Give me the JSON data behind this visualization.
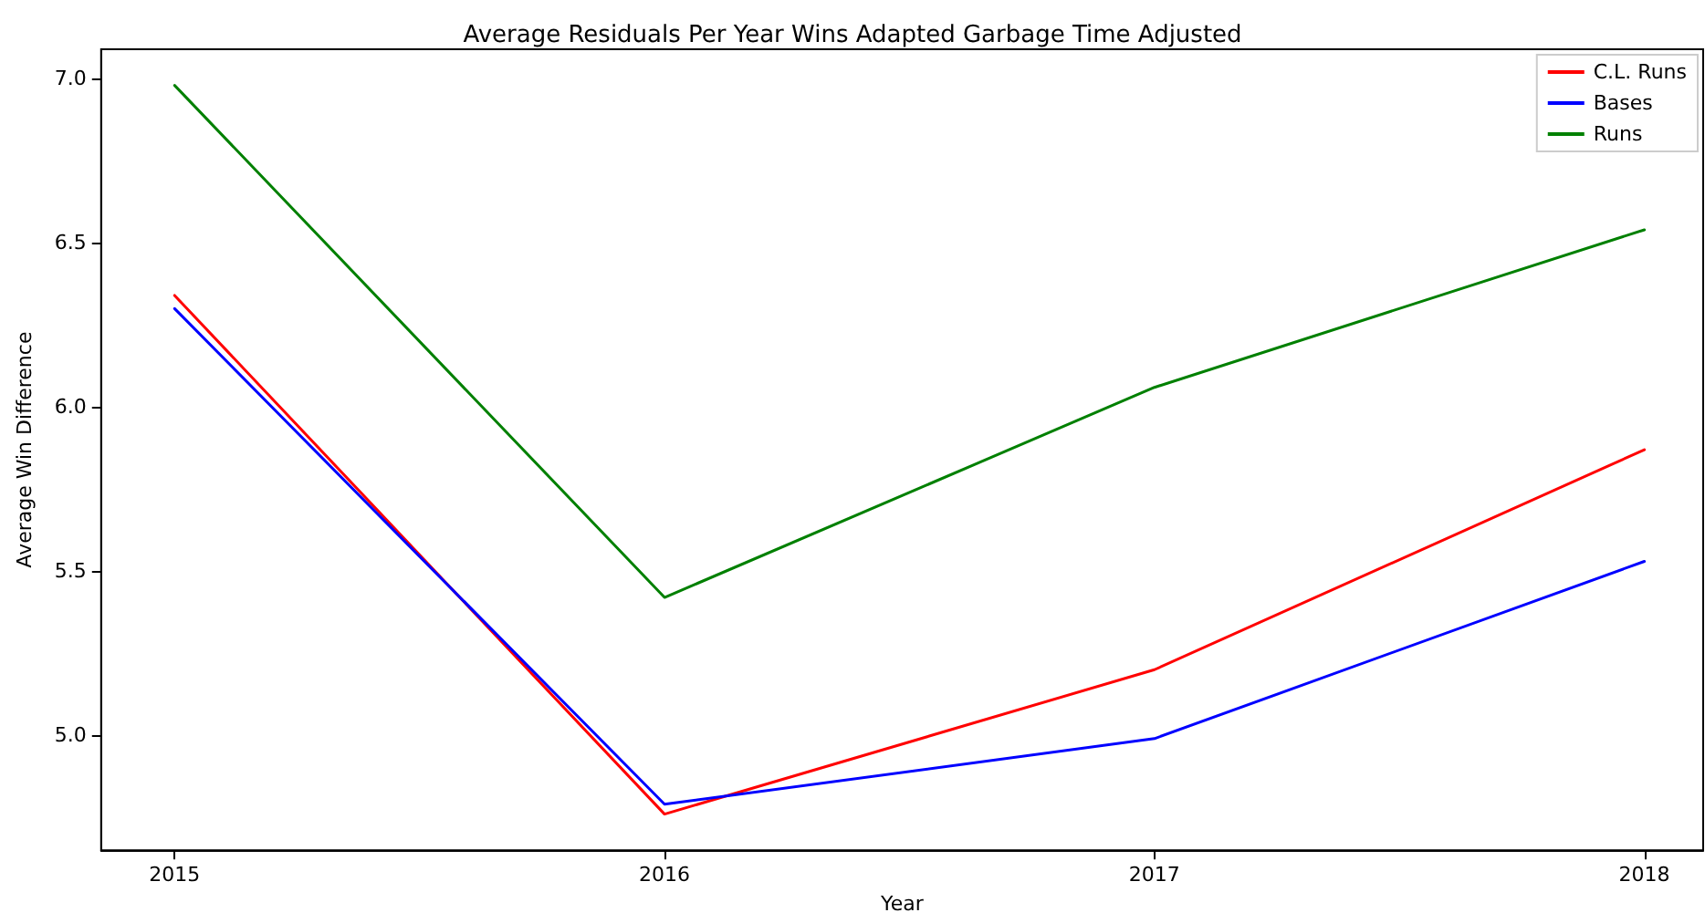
{
  "chart_data": {
    "type": "line",
    "title": "Average Residuals Per Year Wins Adapted Garbage Time Adjusted",
    "xlabel": "Year",
    "ylabel": "Average Win Difference",
    "x": [
      2015,
      2016,
      2017,
      2018
    ],
    "series": [
      {
        "name": "C.L. Runs",
        "color": "#ff0000",
        "values": [
          6.34,
          4.76,
          5.2,
          5.87
        ]
      },
      {
        "name": "Bases",
        "color": "#0000ff",
        "values": [
          6.3,
          4.79,
          4.99,
          5.53
        ]
      },
      {
        "name": "Runs",
        "color": "#008000",
        "values": [
          6.98,
          5.42,
          6.06,
          6.54
        ]
      }
    ],
    "xlim": [
      2014.85,
      2018.12
    ],
    "xticks": [
      2015,
      2016,
      2017,
      2018
    ],
    "ylim": [
      4.65,
      7.09
    ],
    "yticks": [
      {
        "value": 5,
        "label": "5.0"
      },
      {
        "value": 5.5,
        "label": "5.5"
      },
      {
        "value": 6,
        "label": "6.0"
      },
      {
        "value": 6.5,
        "label": "6.5"
      },
      {
        "value": 7,
        "label": "7.0"
      }
    ],
    "grid": false,
    "legend": "top right",
    "marker": "none",
    "line_style": "solid"
  }
}
